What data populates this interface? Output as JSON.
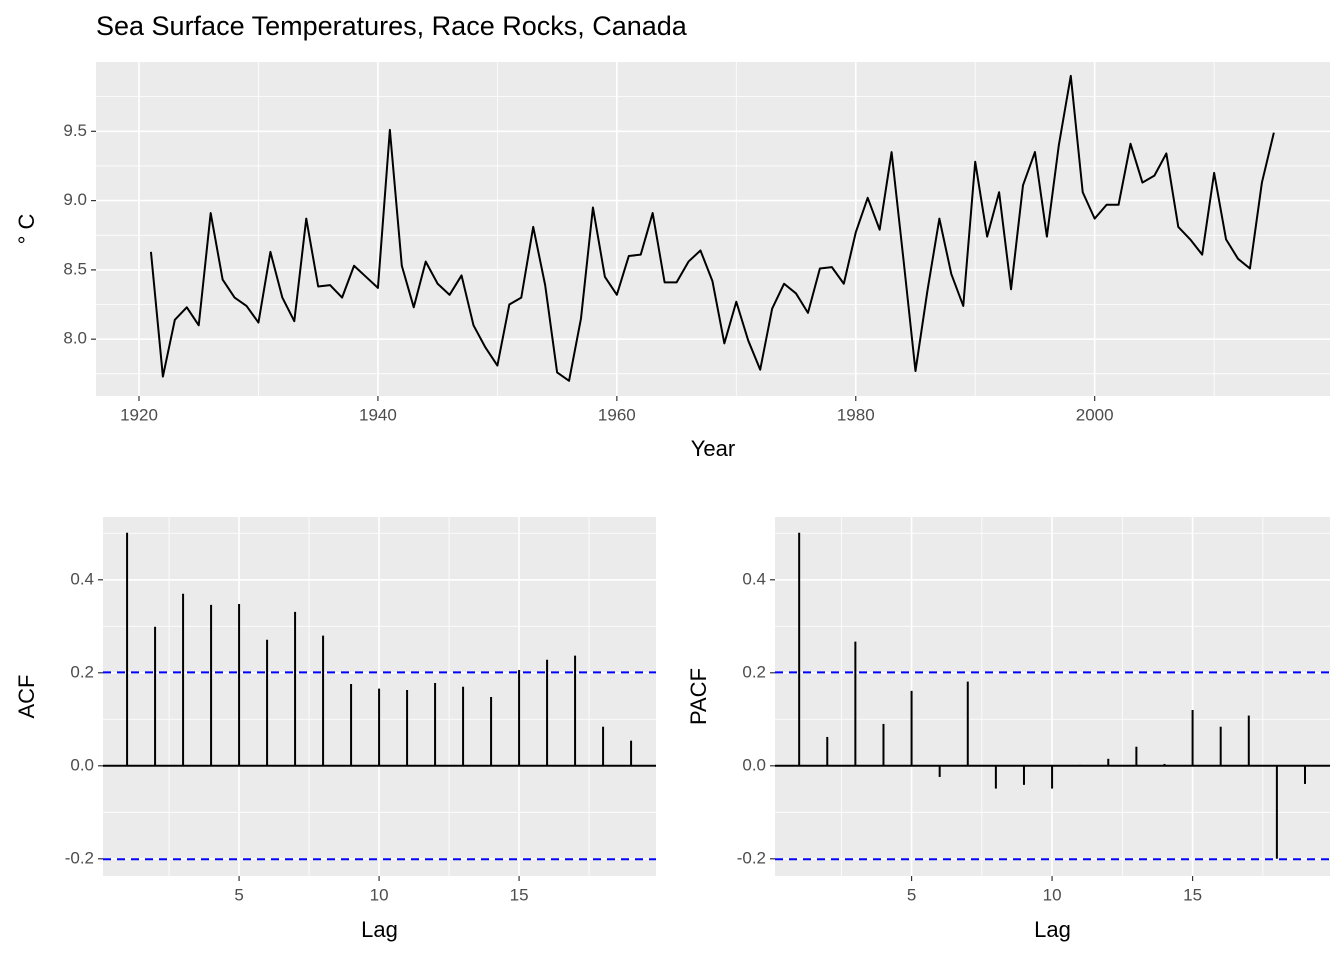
{
  "chart_data": [
    {
      "type": "line",
      "title": "Sea Surface Temperatures, Race Rocks, Canada",
      "x_label": "Year",
      "y_label": "° C",
      "color": "#000000",
      "grid": true,
      "x": [
        1921,
        1922,
        1923,
        1924,
        1925,
        1926,
        1927,
        1928,
        1929,
        1930,
        1931,
        1932,
        1933,
        1934,
        1935,
        1936,
        1937,
        1938,
        1939,
        1940,
        1941,
        1942,
        1943,
        1944,
        1945,
        1946,
        1947,
        1948,
        1949,
        1950,
        1951,
        1952,
        1953,
        1954,
        1955,
        1956,
        1957,
        1958,
        1959,
        1960,
        1961,
        1962,
        1963,
        1964,
        1965,
        1966,
        1967,
        1968,
        1969,
        1970,
        1971,
        1972,
        1973,
        1974,
        1975,
        1976,
        1977,
        1978,
        1979,
        1980,
        1981,
        1982,
        1983,
        1984,
        1985,
        1986,
        1987,
        1988,
        1989,
        1990,
        1991,
        1992,
        1993,
        1994,
        1995,
        1996,
        1997,
        1998,
        1999,
        2000,
        2001,
        2002,
        2003,
        2004,
        2005,
        2006,
        2007,
        2008,
        2009,
        2010,
        2011,
        2012,
        2013,
        2014,
        2015
      ],
      "values": [
        8.63,
        7.73,
        8.14,
        8.23,
        8.1,
        8.91,
        8.43,
        8.3,
        8.24,
        8.12,
        8.63,
        8.3,
        8.13,
        8.87,
        8.38,
        8.39,
        8.3,
        8.53,
        8.45,
        8.37,
        9.51,
        8.53,
        8.23,
        8.56,
        8.4,
        8.32,
        8.46,
        8.1,
        7.94,
        7.81,
        8.25,
        8.3,
        8.81,
        8.39,
        7.76,
        7.7,
        8.15,
        8.95,
        8.45,
        8.32,
        8.6,
        8.61,
        8.91,
        8.41,
        8.41,
        8.56,
        8.64,
        8.42,
        7.97,
        8.27,
        7.99,
        7.78,
        8.22,
        8.4,
        8.33,
        8.19,
        8.51,
        8.52,
        8.4,
        8.77,
        9.02,
        8.79,
        9.35,
        8.57,
        7.77,
        8.35,
        8.87,
        8.47,
        8.24,
        9.28,
        8.74,
        9.06,
        8.36,
        9.11,
        9.35,
        8.74,
        9.4,
        9.9,
        9.06,
        8.87,
        8.97,
        8.97,
        9.41,
        9.13,
        9.18,
        9.34,
        8.81,
        8.72,
        8.61,
        9.2,
        8.72,
        8.58,
        8.51,
        9.13,
        9.49
      ],
      "xlim": [
        1916.4,
        2019.7
      ],
      "xticks": [
        1920,
        1940,
        1960,
        1980,
        2000
      ],
      "ylim": [
        7.59,
        10.0
      ],
      "yticks": [
        {
          "value": 8,
          "label": "8.0"
        },
        8.5,
        {
          "value": 9,
          "label": "9.0"
        },
        9.5
      ]
    },
    {
      "type": "stem",
      "x_label": "Lag",
      "y_label": "ACF",
      "color": "#000000",
      "grid": true,
      "ci": [
        0.201,
        -0.201
      ],
      "ci_color": "#0000ff",
      "x": [
        1,
        2,
        3,
        4,
        5,
        6,
        7,
        8,
        9,
        10,
        11,
        12,
        13,
        14,
        15,
        16,
        17,
        18,
        19
      ],
      "values": [
        0.501,
        0.299,
        0.37,
        0.346,
        0.348,
        0.271,
        0.331,
        0.28,
        0.176,
        0.166,
        0.163,
        0.178,
        0.17,
        0.148,
        0.206,
        0.228,
        0.237,
        0.084,
        0.054
      ],
      "xlim": [
        0.14,
        19.89
      ],
      "xticks": [
        5,
        10,
        15
      ],
      "ylim": [
        -0.237,
        0.535
      ],
      "yticks": [
        -0.2,
        {
          "value": 0,
          "label": "0.0"
        },
        0.2,
        0.4
      ]
    },
    {
      "type": "stem",
      "x_label": "Lag",
      "y_label": "PACF",
      "color": "#000000",
      "grid": true,
      "ci": [
        0.201,
        -0.201
      ],
      "ci_color": "#0000ff",
      "x": [
        1,
        2,
        3,
        4,
        5,
        6,
        7,
        8,
        9,
        10,
        11,
        12,
        13,
        14,
        15,
        16,
        17,
        18,
        19
      ],
      "values": [
        0.501,
        0.062,
        0.267,
        0.09,
        0.161,
        -0.024,
        0.181,
        -0.049,
        -0.041,
        -0.049,
        0.002,
        0.015,
        0.041,
        0.004,
        0.12,
        0.084,
        0.108,
        -0.2,
        -0.039
      ],
      "xlim": [
        0.14,
        19.89
      ],
      "xticks": [
        5,
        10,
        15
      ],
      "ylim": [
        -0.237,
        0.535
      ],
      "yticks": [
        -0.2,
        {
          "value": 0,
          "label": "0.0"
        },
        0.2,
        0.4
      ]
    }
  ]
}
